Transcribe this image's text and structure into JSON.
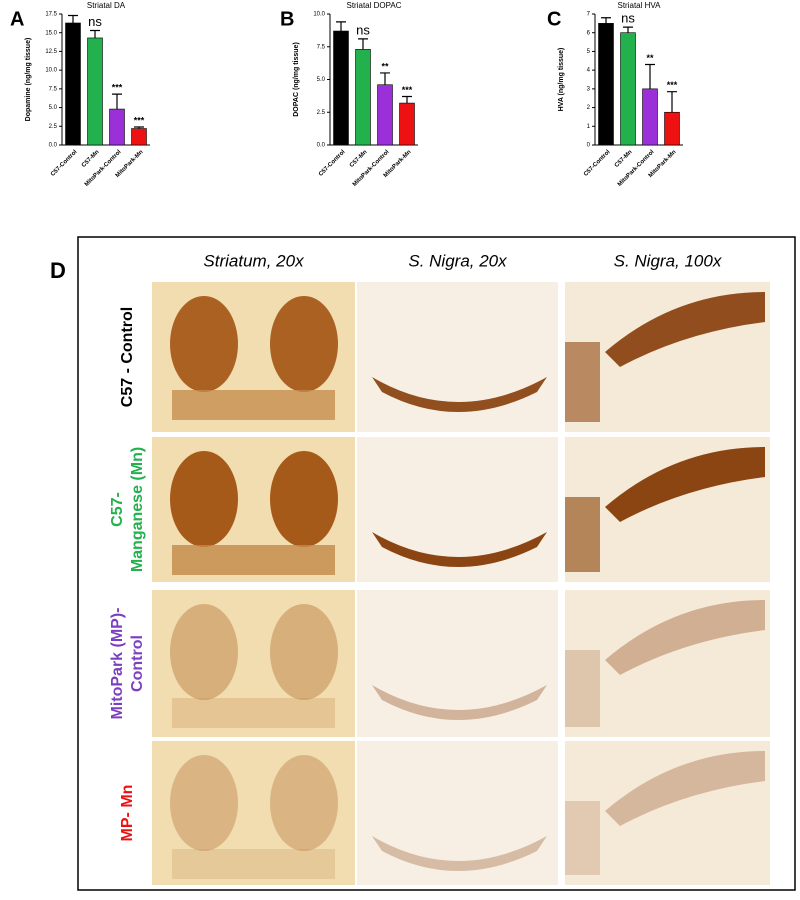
{
  "chart_data": [
    {
      "type": "bar",
      "panel": "A",
      "title": "Striatal DA",
      "y_label": "Dopamine (ng/mg tissue)",
      "categories": [
        "C57-Control",
        "C57-Mn",
        "MitoPark-Control",
        "MitoPark-Mn"
      ],
      "values": [
        16.3,
        14.3,
        4.8,
        2.2
      ],
      "errors": [
        1.0,
        1.0,
        2.0,
        0.2
      ],
      "colors": [
        "#000000",
        "#22b14c",
        "#9b30d9",
        "#ee1111"
      ],
      "annotations": [
        null,
        "ns",
        "***",
        "***"
      ],
      "ylim": [
        0,
        17.5
      ],
      "yticks": [
        {
          "value": 0,
          "label": "0.0"
        },
        2.5,
        {
          "value": 5,
          "label": "5.0"
        },
        7.5,
        {
          "value": 10,
          "label": "10.0"
        },
        12.5,
        {
          "value": 15,
          "label": "15.0"
        },
        17.5
      ]
    },
    {
      "type": "bar",
      "panel": "B",
      "title": "Striatal DOPAC",
      "y_label": "DOPAC (ng/mg tissue)",
      "categories": [
        "C57-Control",
        "C57-Mn",
        "MitoPark-Control",
        "MitoPark-Mn"
      ],
      "values": [
        8.7,
        7.3,
        4.6,
        3.2
      ],
      "errors": [
        0.7,
        0.8,
        0.9,
        0.5
      ],
      "colors": [
        "#000000",
        "#22b14c",
        "#9b30d9",
        "#ee1111"
      ],
      "annotations": [
        null,
        "ns",
        "**",
        "***"
      ],
      "ylim": [
        0,
        10
      ],
      "yticks": [
        {
          "value": 0,
          "label": "0.0"
        },
        2.5,
        {
          "value": 5,
          "label": "5.0"
        },
        7.5,
        {
          "value": 10,
          "label": "10.0"
        }
      ]
    },
    {
      "type": "bar",
      "panel": "C",
      "title": "Striatal HVA",
      "y_label": "HVA (ng/mg tissue)",
      "categories": [
        "C57-Control",
        "C57-Mn",
        "MitoPark-Control",
        "MitoPark-Mn"
      ],
      "values": [
        6.5,
        6.0,
        3.0,
        1.75
      ],
      "errors": [
        0.3,
        0.3,
        1.3,
        1.1
      ],
      "colors": [
        "#000000",
        "#22b14c",
        "#9b30d9",
        "#ee1111"
      ],
      "annotations": [
        null,
        "ns",
        "**",
        "***"
      ],
      "ylim": [
        0,
        7
      ],
      "yticks": [
        0,
        1,
        2,
        3,
        4,
        5,
        6,
        7
      ]
    }
  ],
  "panel_d": {
    "label": "D",
    "columns": [
      "Striatum, 20x",
      "S. Nigra, 20x",
      "S. Nigra, 100x"
    ],
    "rows": [
      {
        "lines": [
          "C57 - Control"
        ],
        "color": "#000000"
      },
      {
        "lines": [
          "C57-",
          "Manganese (Mn)"
        ],
        "color": "#22b14c"
      },
      {
        "lines": [
          "MitoPark (MP)-",
          "Control"
        ],
        "color": "#7b3fbf"
      },
      {
        "lines": [
          "MP- Mn"
        ],
        "color": "#ee1111"
      }
    ]
  }
}
